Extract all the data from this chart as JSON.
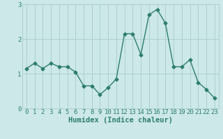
{
  "x": [
    0,
    1,
    2,
    3,
    4,
    5,
    6,
    7,
    8,
    9,
    10,
    11,
    12,
    13,
    14,
    15,
    16,
    17,
    18,
    19,
    20,
    21,
    22,
    23
  ],
  "y": [
    1.15,
    1.3,
    1.15,
    1.3,
    1.2,
    1.2,
    1.05,
    0.65,
    0.65,
    0.4,
    0.6,
    0.85,
    2.15,
    2.15,
    1.55,
    2.7,
    2.85,
    2.45,
    1.2,
    1.2,
    1.4,
    0.75,
    0.55,
    0.3
  ],
  "line_color": "#2e7d6e",
  "marker": "D",
  "marker_size": 2.5,
  "bg_color": "#cce8e8",
  "grid_color": "#aed0d0",
  "xlabel": "Humidex (Indice chaleur)",
  "xlim": [
    -0.5,
    23.5
  ],
  "ylim": [
    0,
    3.0
  ],
  "yticks": [
    0,
    1,
    2,
    3
  ],
  "xticks": [
    0,
    1,
    2,
    3,
    4,
    5,
    6,
    7,
    8,
    9,
    10,
    11,
    12,
    13,
    14,
    15,
    16,
    17,
    18,
    19,
    20,
    21,
    22,
    23
  ],
  "tick_fontsize": 6.5,
  "xlabel_fontsize": 7.5,
  "line_width": 1.0
}
